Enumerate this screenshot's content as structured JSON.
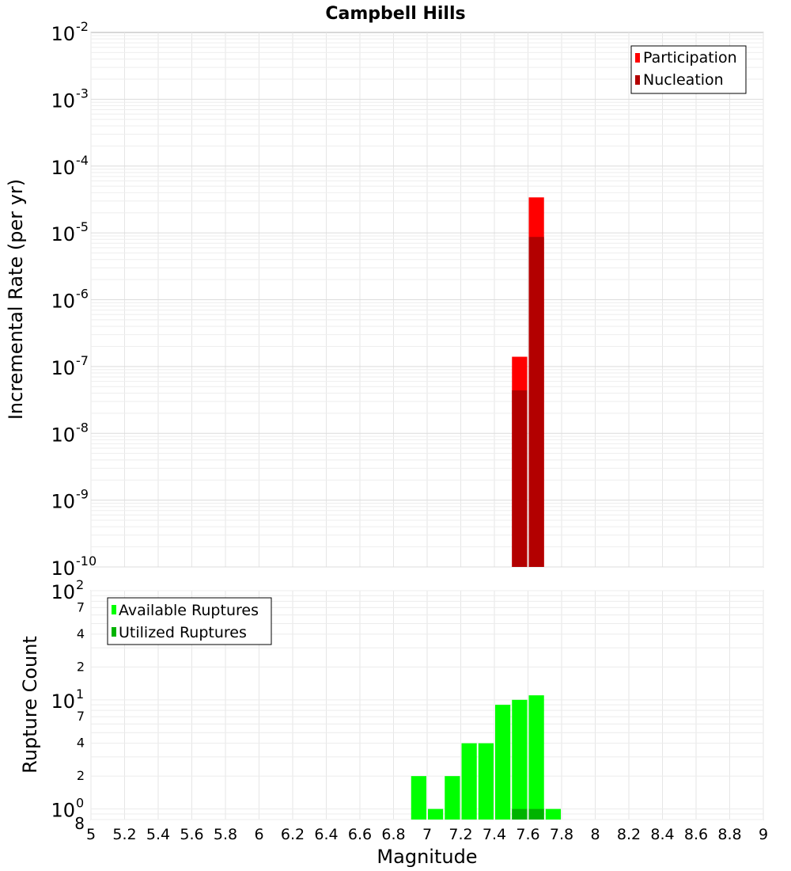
{
  "chart_data": [
    {
      "type": "bar",
      "title": "Campbell Hills",
      "ylabel": "Incremental Rate (per yr)",
      "xlabel": "",
      "y_scale": "log",
      "ylim": [
        1e-10,
        0.01
      ],
      "xlim": [
        5,
        9
      ],
      "bin_width": 0.1,
      "legend_position": "top-right",
      "y_tick_labels": [
        {
          "base": "10",
          "exp": "-10",
          "value": 1e-10
        },
        {
          "base": "10",
          "exp": "-9",
          "value": 1e-09
        },
        {
          "base": "10",
          "exp": "-8",
          "value": 1e-08
        },
        {
          "base": "10",
          "exp": "-7",
          "value": 1e-07
        },
        {
          "base": "10",
          "exp": "-6",
          "value": 1e-06
        },
        {
          "base": "10",
          "exp": "-5",
          "value": 1e-05
        },
        {
          "base": "10",
          "exp": "-4",
          "value": 0.0001
        },
        {
          "base": "10",
          "exp": "-3",
          "value": 0.001
        },
        {
          "base": "10",
          "exp": "-2",
          "value": 0.01
        }
      ],
      "series": [
        {
          "name": "Participation",
          "color": "#ff0000",
          "x": [
            7.55,
            7.65
          ],
          "values": [
            1.4e-07,
            3.4e-05
          ]
        },
        {
          "name": "Nucleation",
          "color": "#b30000",
          "x": [
            7.55,
            7.65
          ],
          "values": [
            4.4e-08,
            8.7e-06
          ]
        }
      ]
    },
    {
      "type": "bar",
      "title": "",
      "ylabel": "Rupture Count",
      "xlabel": "Magnitude",
      "y_scale": "log",
      "ylim": [
        0.8,
        100
      ],
      "xlim": [
        5,
        9
      ],
      "bin_width": 0.1,
      "legend_position": "top-left",
      "x_tick_labels": [
        "5",
        "5.2",
        "5.4",
        "5.6",
        "5.8",
        "6",
        "6.2",
        "6.4",
        "6.6",
        "6.8",
        "7",
        "7.2",
        "7.4",
        "7.6",
        "7.8",
        "8",
        "8.2",
        "8.4",
        "8.6",
        "8.8",
        "9"
      ],
      "y_major_tick_labels": [
        {
          "base": "10",
          "exp": "0",
          "value": 1
        },
        {
          "base": "10",
          "exp": "1",
          "value": 10
        },
        {
          "base": "10",
          "exp": "2",
          "value": 100
        }
      ],
      "y_minor_tick_labels": [
        {
          "label": "8",
          "value": 0.8
        },
        {
          "label": "2",
          "value": 2
        },
        {
          "label": "4",
          "value": 4
        },
        {
          "label": "7",
          "value": 7
        },
        {
          "label": "2",
          "value": 20
        },
        {
          "label": "4",
          "value": 40
        },
        {
          "label": "7",
          "value": 70
        }
      ],
      "series": [
        {
          "name": "Available Ruptures",
          "color": "#00ff00",
          "x": [
            6.95,
            7.05,
            7.15,
            7.25,
            7.35,
            7.45,
            7.55,
            7.65,
            7.75
          ],
          "values": [
            2,
            1,
            2,
            4,
            4,
            9,
            10,
            11,
            1
          ]
        },
        {
          "name": "Utilized Ruptures",
          "color": "#00b300",
          "x": [
            7.55,
            7.65
          ],
          "values": [
            1,
            1
          ]
        }
      ]
    }
  ]
}
